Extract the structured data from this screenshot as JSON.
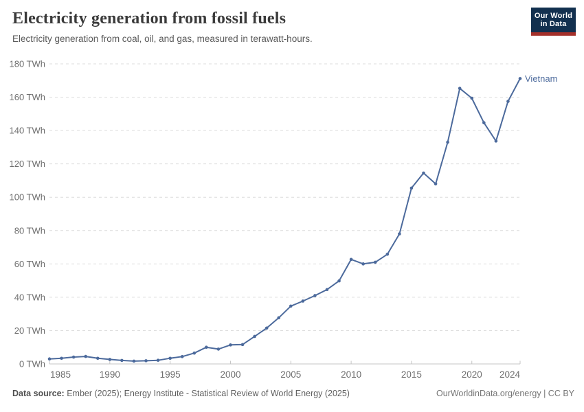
{
  "header": {
    "title": "Electricity generation from fossil fuels",
    "subtitle": "Electricity generation from coal, oil, and gas, measured in terawatt-hours."
  },
  "logo": {
    "line1": "Our World",
    "line2": "in Data",
    "bg_color": "#12304f",
    "accent_color": "#a4302a"
  },
  "footer": {
    "source_label": "Data source:",
    "source_text": " Ember (2025); Energy Institute - Statistical Review of World Energy (2025)",
    "credit": "OurWorldinData.org/energy | CC BY"
  },
  "chart_data": {
    "type": "line",
    "title": "Electricity generation from fossil fuels",
    "entity": "Vietnam",
    "unit": "TWh",
    "ylim": [
      0,
      180
    ],
    "yticks": [
      0,
      20,
      40,
      60,
      80,
      100,
      120,
      140,
      160,
      180
    ],
    "ytick_suffix": " TWh",
    "xlim": [
      1985,
      2024
    ],
    "xticks": [
      1985,
      1990,
      1995,
      2000,
      2005,
      2010,
      2015,
      2020,
      2024
    ],
    "grid": "horizontal-dashed",
    "legend_position": "label-at-line-end",
    "colors": {
      "line": "#4C6A9C",
      "grid": "#dcdcdc",
      "axis": "#c4c4c4",
      "tick_label": "#6e6e6e"
    },
    "series": [
      {
        "name": "Vietnam",
        "color": "#4C6A9C",
        "x": [
          1985,
          1986,
          1987,
          1988,
          1989,
          1990,
          1991,
          1992,
          1993,
          1994,
          1995,
          1996,
          1997,
          1998,
          1999,
          2000,
          2001,
          2002,
          2003,
          2004,
          2005,
          2006,
          2007,
          2008,
          2009,
          2010,
          2011,
          2012,
          2013,
          2014,
          2015,
          2016,
          2017,
          2018,
          2019,
          2020,
          2021,
          2022,
          2023,
          2024
        ],
        "values": [
          3.0,
          3.4,
          4.1,
          4.5,
          3.4,
          2.7,
          2.1,
          1.7,
          1.9,
          2.2,
          3.4,
          4.4,
          6.5,
          10.0,
          8.9,
          11.4,
          11.6,
          16.5,
          21.5,
          27.7,
          34.7,
          37.7,
          41.0,
          44.6,
          49.8,
          62.7,
          60.0,
          61.0,
          65.8,
          78.0,
          105.5,
          114.5,
          108.0,
          133.0,
          165.3,
          159.4,
          144.7,
          133.7,
          157.5,
          171.2
        ]
      }
    ]
  }
}
